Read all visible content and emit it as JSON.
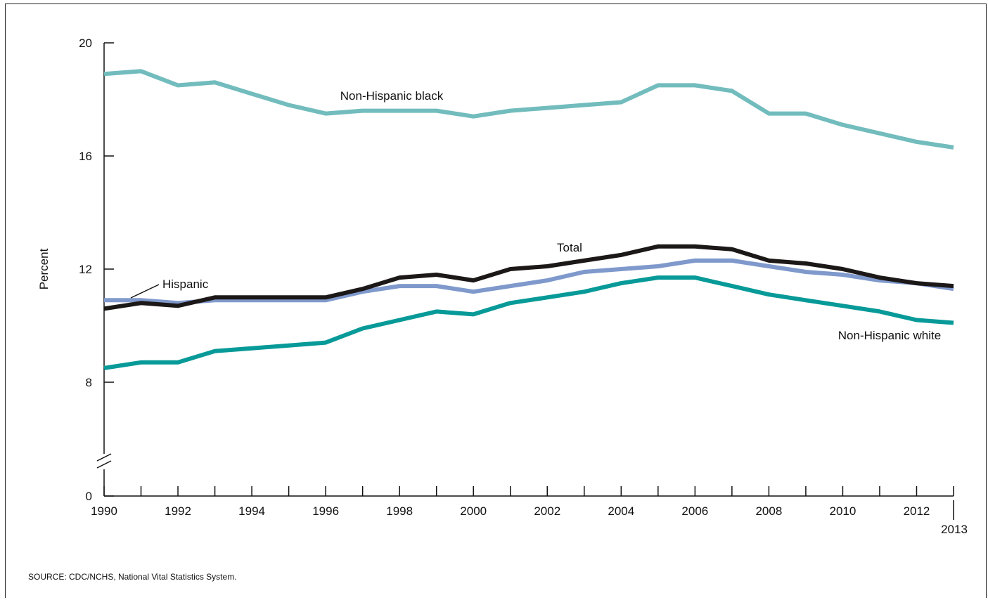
{
  "source_note": "SOURCE: CDC/NCHS, National Vital Statistics System.",
  "colors": {
    "nh_black": "#72bcbd",
    "hispanic": "#7f99cc",
    "total": "#1c1818",
    "nh_white": "#079a98",
    "axis": "#111111"
  },
  "chart_data": {
    "type": "line",
    "title": "",
    "xlabel": "",
    "ylabel": "Percent",
    "ylim": [
      0,
      20
    ],
    "y_axis_break": true,
    "y_ticks": [
      0,
      8,
      12,
      16,
      20
    ],
    "x_tick_labels": [
      "1990",
      "1992",
      "1994",
      "1996",
      "1998",
      "2000",
      "2002",
      "2004",
      "2006",
      "2008",
      "2010",
      "2012",
      "2013"
    ],
    "grid": false,
    "x": [
      1990,
      1991,
      1992,
      1993,
      1994,
      1995,
      1996,
      1997,
      1998,
      1999,
      2000,
      2001,
      2002,
      2003,
      2004,
      2005,
      2006,
      2007,
      2008,
      2009,
      2010,
      2011,
      2012,
      2013
    ],
    "series": [
      {
        "name": "Non-Hispanic black",
        "color_key": "nh_black",
        "values": [
          18.9,
          19.0,
          18.5,
          18.6,
          18.2,
          17.8,
          17.5,
          17.6,
          17.6,
          17.6,
          17.4,
          17.6,
          17.7,
          17.8,
          17.9,
          18.5,
          18.5,
          18.3,
          17.5,
          17.5,
          17.1,
          16.8,
          16.5,
          16.3
        ]
      },
      {
        "name": "Hispanic",
        "color_key": "hispanic",
        "values": [
          10.9,
          10.9,
          10.8,
          10.9,
          10.9,
          10.9,
          10.9,
          11.2,
          11.4,
          11.4,
          11.2,
          11.4,
          11.6,
          11.9,
          12.0,
          12.1,
          12.3,
          12.3,
          12.1,
          11.9,
          11.8,
          11.6,
          11.5,
          11.3
        ]
      },
      {
        "name": "Total",
        "color_key": "total",
        "values": [
          10.6,
          10.8,
          10.7,
          11.0,
          11.0,
          11.0,
          11.0,
          11.3,
          11.7,
          11.8,
          11.6,
          12.0,
          12.1,
          12.3,
          12.5,
          12.8,
          12.8,
          12.7,
          12.3,
          12.2,
          12.0,
          11.7,
          11.5,
          11.4
        ]
      },
      {
        "name": "Non-Hispanic white",
        "color_key": "nh_white",
        "values": [
          8.5,
          8.7,
          8.7,
          9.1,
          9.2,
          9.3,
          9.4,
          9.9,
          10.2,
          10.5,
          10.4,
          10.8,
          11.0,
          11.2,
          11.5,
          11.7,
          11.7,
          11.4,
          11.1,
          10.9,
          10.7,
          10.5,
          10.2,
          10.1
        ]
      }
    ],
    "labels": [
      {
        "text": "Non-Hispanic black",
        "series": "Non-Hispanic black"
      },
      {
        "text": "Hispanic",
        "series": "Hispanic"
      },
      {
        "text": "Total",
        "series": "Total"
      },
      {
        "text": "Non-Hispanic white",
        "series": "Non-Hispanic white"
      }
    ]
  }
}
